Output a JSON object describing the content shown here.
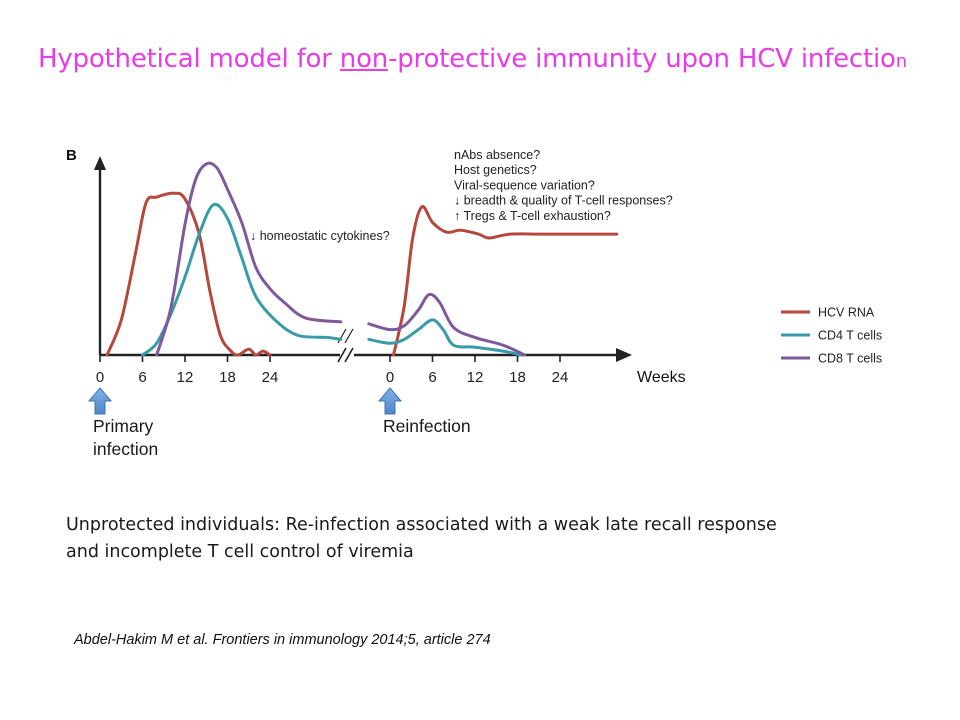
{
  "slide": {
    "title_before": "Hypothetical model for ",
    "title_underlined": "non",
    "title_after": "-protective immunity upon HCV infectio",
    "title_tail": "n",
    "caption_line1": "Unprotected individuals: Re-infection associated with a weak late recall response",
    "caption_line2": "and incomplete T cell control of viremia",
    "citation": "Abdel-Hakim M et al. Frontiers in immunology 2014;5, article 274"
  },
  "chart_data": {
    "type": "line",
    "panel_label": "B",
    "xlabel": "Weeks",
    "axis_break": true,
    "grid": false,
    "legend_position": "right",
    "segments": [
      {
        "name": "primary",
        "ticks": [
          0,
          6,
          12,
          18,
          24
        ],
        "tick_labels": [
          "0",
          "6",
          "12",
          "18",
          "24"
        ],
        "xlim": [
          0,
          34
        ]
      },
      {
        "name": "reinfection",
        "ticks": [
          0,
          6,
          12,
          18,
          24
        ],
        "tick_labels": [
          "0",
          "6",
          "12",
          "18",
          "24"
        ],
        "xlim": [
          0,
          34
        ]
      }
    ],
    "y_scale": "relative (unlabeled)",
    "ylim": [
      0,
      100
    ],
    "annotations": {
      "homeostatic": "↓ homeostatic cytokines?",
      "reasons": [
        "nAbs absence?",
        "Host genetics?",
        "Viral-sequence variation?",
        "↓ breadth & quality of T-cell responses?",
        "↑ Tregs & T-cell exhaustion?"
      ],
      "arrows": [
        {
          "label_lines": [
            "Primary",
            "infection"
          ],
          "segment": "primary",
          "week": 0
        },
        {
          "label_lines": [
            "Reinfection"
          ],
          "segment": "reinfection",
          "week": 0
        }
      ]
    },
    "series": [
      {
        "name": "HCV RNA",
        "color": "#b5483c",
        "points": [
          {
            "seg": 0,
            "x": 1,
            "y": 0
          },
          {
            "seg": 0,
            "x": 3,
            "y": 18
          },
          {
            "seg": 0,
            "x": 5,
            "y": 52
          },
          {
            "seg": 0,
            "x": 6.5,
            "y": 78
          },
          {
            "seg": 0,
            "x": 8,
            "y": 81
          },
          {
            "seg": 0,
            "x": 10.5,
            "y": 83
          },
          {
            "seg": 0,
            "x": 12,
            "y": 80
          },
          {
            "seg": 0,
            "x": 14,
            "y": 62
          },
          {
            "seg": 0,
            "x": 15.5,
            "y": 33
          },
          {
            "seg": 0,
            "x": 17,
            "y": 10
          },
          {
            "seg": 0,
            "x": 18.5,
            "y": 2
          },
          {
            "seg": 0,
            "x": 19.5,
            "y": 0
          },
          {
            "seg": 0,
            "x": 21,
            "y": 3
          },
          {
            "seg": 0,
            "x": 22,
            "y": 0
          },
          {
            "seg": 0,
            "x": 23,
            "y": 2
          },
          {
            "seg": 0,
            "x": 24,
            "y": 0
          },
          {
            "seg": 1,
            "x": 0.5,
            "y": 0
          },
          {
            "seg": 1,
            "x": 2,
            "y": 25
          },
          {
            "seg": 1,
            "x": 3.2,
            "y": 60
          },
          {
            "seg": 1,
            "x": 4.5,
            "y": 76
          },
          {
            "seg": 1,
            "x": 6,
            "y": 68
          },
          {
            "seg": 1,
            "x": 8,
            "y": 63
          },
          {
            "seg": 1,
            "x": 10,
            "y": 64
          },
          {
            "seg": 1,
            "x": 12.5,
            "y": 62
          },
          {
            "seg": 1,
            "x": 14,
            "y": 60
          },
          {
            "seg": 1,
            "x": 17,
            "y": 62
          },
          {
            "seg": 1,
            "x": 22,
            "y": 62
          },
          {
            "seg": 1,
            "x": 32,
            "y": 62
          }
        ]
      },
      {
        "name": "CD4 T cells",
        "color": "#3a9aa8",
        "points": [
          {
            "seg": 0,
            "x": 6,
            "y": 0
          },
          {
            "seg": 0,
            "x": 8,
            "y": 6
          },
          {
            "seg": 0,
            "x": 10,
            "y": 21
          },
          {
            "seg": 0,
            "x": 12,
            "y": 40
          },
          {
            "seg": 0,
            "x": 14,
            "y": 62
          },
          {
            "seg": 0,
            "x": 16,
            "y": 77
          },
          {
            "seg": 0,
            "x": 18,
            "y": 70
          },
          {
            "seg": 0,
            "x": 20,
            "y": 50
          },
          {
            "seg": 0,
            "x": 22,
            "y": 30
          },
          {
            "seg": 0,
            "x": 25,
            "y": 17
          },
          {
            "seg": 0,
            "x": 28,
            "y": 10
          },
          {
            "seg": 0,
            "x": 32,
            "y": 9
          },
          {
            "seg": 0,
            "x": 34,
            "y": 8
          },
          {
            "seg": 1,
            "x": -3,
            "y": 8
          },
          {
            "seg": 1,
            "x": 0,
            "y": 6
          },
          {
            "seg": 1,
            "x": 2,
            "y": 8
          },
          {
            "seg": 1,
            "x": 4,
            "y": 13
          },
          {
            "seg": 1,
            "x": 6,
            "y": 18
          },
          {
            "seg": 1,
            "x": 7.5,
            "y": 13
          },
          {
            "seg": 1,
            "x": 9,
            "y": 5
          },
          {
            "seg": 1,
            "x": 12,
            "y": 4
          },
          {
            "seg": 1,
            "x": 16,
            "y": 2
          },
          {
            "seg": 1,
            "x": 18.5,
            "y": 0
          }
        ]
      },
      {
        "name": "CD8 T cells",
        "color": "#7e5a9b",
        "points": [
          {
            "seg": 0,
            "x": 8,
            "y": 0
          },
          {
            "seg": 0,
            "x": 10,
            "y": 24
          },
          {
            "seg": 0,
            "x": 12,
            "y": 67
          },
          {
            "seg": 0,
            "x": 13.5,
            "y": 90
          },
          {
            "seg": 0,
            "x": 15,
            "y": 98
          },
          {
            "seg": 0,
            "x": 16.5,
            "y": 96
          },
          {
            "seg": 0,
            "x": 18,
            "y": 85
          },
          {
            "seg": 0,
            "x": 20,
            "y": 68
          },
          {
            "seg": 0,
            "x": 22,
            "y": 45
          },
          {
            "seg": 0,
            "x": 24,
            "y": 34
          },
          {
            "seg": 0,
            "x": 26,
            "y": 27
          },
          {
            "seg": 0,
            "x": 29,
            "y": 19
          },
          {
            "seg": 0,
            "x": 34,
            "y": 17
          },
          {
            "seg": 1,
            "x": -3,
            "y": 16
          },
          {
            "seg": 1,
            "x": 0,
            "y": 13
          },
          {
            "seg": 1,
            "x": 2,
            "y": 15
          },
          {
            "seg": 1,
            "x": 4,
            "y": 23
          },
          {
            "seg": 1,
            "x": 5.5,
            "y": 31
          },
          {
            "seg": 1,
            "x": 7,
            "y": 27
          },
          {
            "seg": 1,
            "x": 9,
            "y": 14
          },
          {
            "seg": 1,
            "x": 12,
            "y": 9
          },
          {
            "seg": 1,
            "x": 16,
            "y": 5
          },
          {
            "seg": 1,
            "x": 19,
            "y": 0
          }
        ]
      }
    ]
  }
}
